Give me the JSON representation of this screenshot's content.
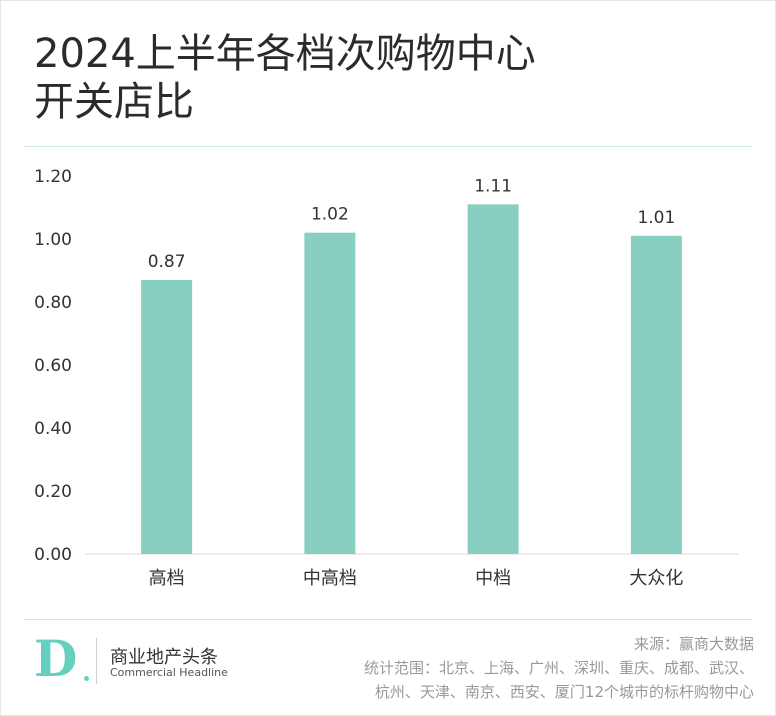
{
  "page": {
    "title_line1": "2024上半年各档次购物中心",
    "title_line2": "开关店比"
  },
  "footer": {
    "brand_cn": "商业地产头条",
    "brand_en": "Commercial Headline",
    "logo_text": "D",
    "source": "来源：赢商大数据",
    "scope_line1": "统计范围：北京、上海、广州、深圳、重庆、成都、武汉、",
    "scope_line2": "杭州、天津、南京、西安、厦门12个城市的标杆购物中心"
  },
  "colors": {
    "bar": "#88cfc1",
    "rule": "#cde9e2",
    "logo": "#66d0bf"
  },
  "chart_data": {
    "type": "bar",
    "title": "2024上半年各档次购物中心开关店比",
    "categories": [
      "高档",
      "中高档",
      "中档",
      "大众化"
    ],
    "values": [
      0.87,
      1.02,
      1.11,
      1.01
    ],
    "data_labels": [
      "0.87",
      "1.02",
      "1.11",
      "1.01"
    ],
    "y_ticks": [
      "0.00",
      "0.20",
      "0.40",
      "0.60",
      "0.80",
      "1.00",
      "1.20"
    ],
    "ylim": [
      0,
      1.2
    ],
    "xlabel": "",
    "ylabel": "",
    "grid": false,
    "legend": "none"
  }
}
